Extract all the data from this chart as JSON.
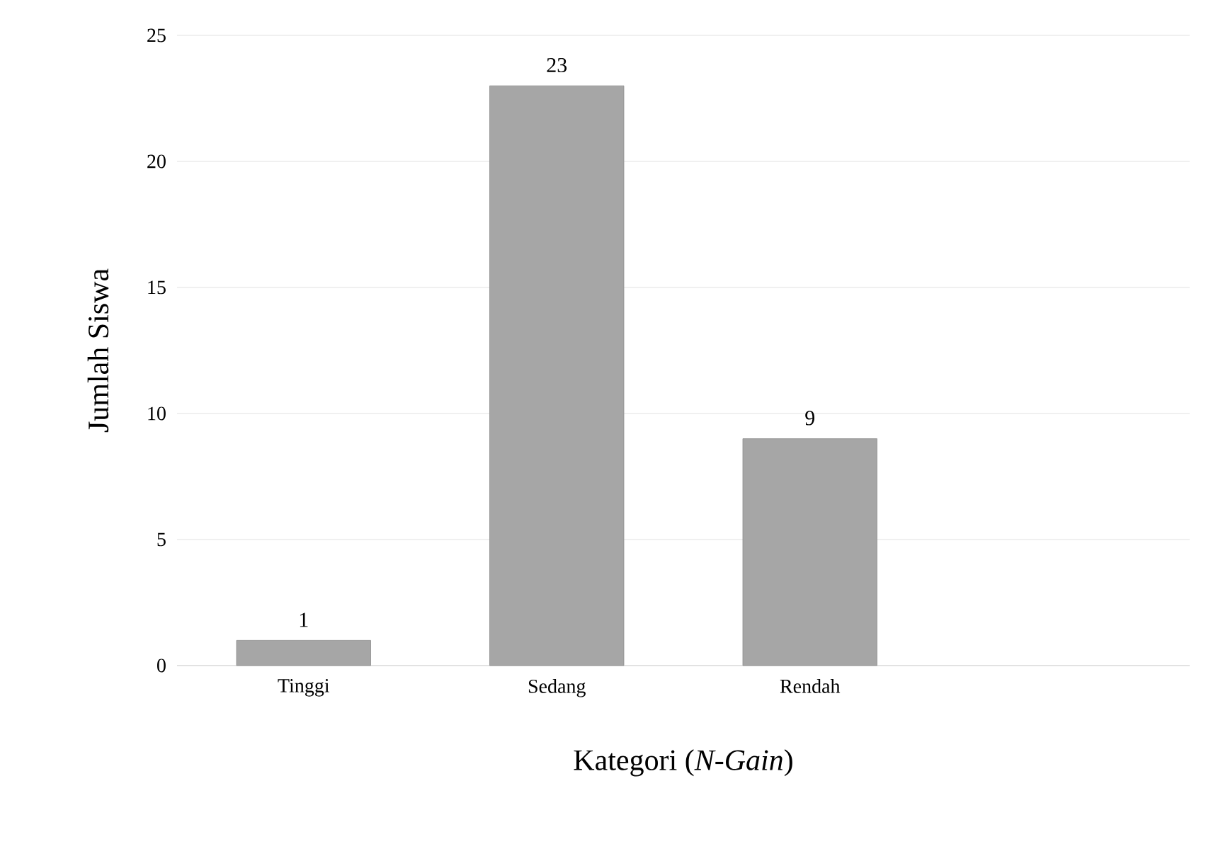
{
  "chart_data": {
    "type": "bar",
    "xlabel": "Kategori (*N-Gain*)",
    "ylabel": "Jumlah Siswa",
    "categories": [
      "Tinggi",
      "Sedang",
      "Rendah",
      null
    ],
    "values": [
      1,
      23,
      9,
      null
    ],
    "color": "#a6a6a6",
    "ylim": [
      0,
      25
    ],
    "yticks": [
      0,
      5,
      10,
      15,
      20,
      25
    ],
    "grid": "y",
    "data_labels": true
  }
}
